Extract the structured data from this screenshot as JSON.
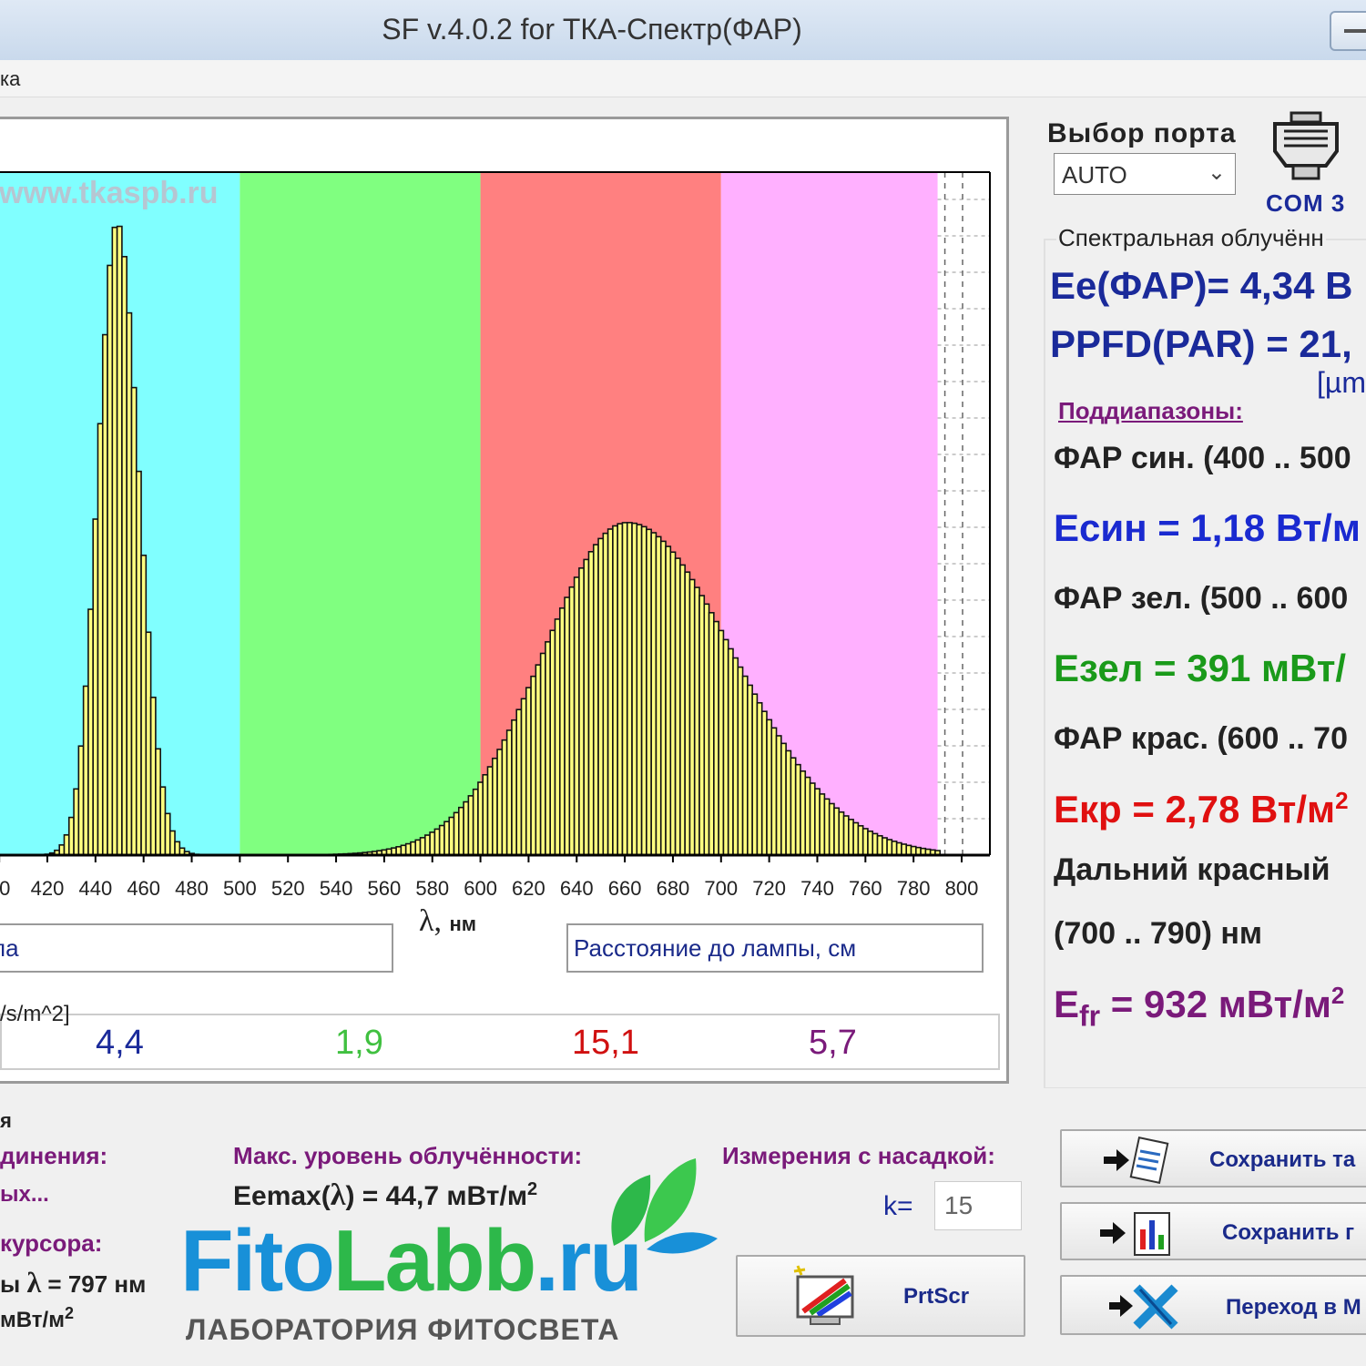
{
  "window": {
    "title": "SF v.4.0.2 for ТКА-Спектр(ФАР)"
  },
  "menu": {
    "item_partial": "ка"
  },
  "chart_data": {
    "type": "bar",
    "watermark": "www.tkaspb.ru",
    "xlabel_symbol": "λ,",
    "xlabel_unit": "нм",
    "xlim": [
      400,
      810
    ],
    "ylim": [
      0,
      48
    ],
    "x_ticks": [
      "00",
      "420",
      "440",
      "460",
      "480",
      "500",
      "520",
      "540",
      "560",
      "580",
      "600",
      "620",
      "640",
      "660",
      "680",
      "700",
      "720",
      "740",
      "760",
      "780",
      "800"
    ],
    "x_tick_values": [
      400,
      420,
      440,
      460,
      480,
      500,
      520,
      540,
      560,
      580,
      600,
      620,
      640,
      660,
      680,
      700,
      720,
      740,
      760,
      780,
      800
    ],
    "bands": [
      {
        "from": 400,
        "to": 500,
        "color": "#80ffff"
      },
      {
        "from": 500,
        "to": 600,
        "color": "#80ff80"
      },
      {
        "from": 600,
        "to": 700,
        "color": "#ff8080"
      },
      {
        "from": 700,
        "to": 790,
        "color": "#ffb0ff"
      }
    ],
    "bar_color": "#ffff80",
    "bar_step_nm": 2,
    "bar_range": [
      402,
      790
    ],
    "peaks": [
      {
        "center": 449,
        "height": 44.7,
        "sigma_left": 8,
        "sigma_right": 9
      },
      {
        "center": 661,
        "height": 23.5,
        "sigma_left": 35,
        "sigma_right": 44
      }
    ]
  },
  "fields": {
    "left_partial": "па",
    "distance": "Расстояние до лампы,  см"
  },
  "values": {
    "units_partial": "/s/m^2]",
    "blue": "4,4",
    "green": "1,9",
    "red": "15,1",
    "farred": "5,7",
    "blue_color": "#1a2a9a",
    "green_color": "#40c040",
    "red_color": "#d01010",
    "farred_color": "#7a1a7a"
  },
  "port": {
    "label": "Выбор порта",
    "selected": "AUTO",
    "com": "COM  3"
  },
  "spectral": {
    "title": "Спектральная облучённ",
    "ee_par": "Ee(ФАР)= 4,34 В",
    "ppfd": "PPFD(PAR) = 21,",
    "ppfd_unit": "[µm",
    "subranges": "Поддиапазоны:",
    "blue_range": "ФАР син. (400 .. 500",
    "e_blue": "Eсин = 1,18 Вт/м",
    "green_range": "ФАР зел. (500 .. 600",
    "e_green": "Eзел = 391 мВт/",
    "red_range": "ФАР крас. (600 .. 70",
    "e_red": "Eкр = 2,78 Вт/м",
    "e_red_sup": "2",
    "farred_label": "Дальний красный",
    "farred_range": "(700 .. 790) нм",
    "e_fr_base": "E",
    "e_fr_sub": "fr",
    "e_fr_value": " = 932 мВт/м",
    "e_fr_sup": "2"
  },
  "bottom": {
    "section_partial": "я",
    "connection_label": "динения:",
    "connection_value": "ых...",
    "max_label": "Макс. уровень облучённости:",
    "emax_prefix": "Eemax(",
    "emax_lambda": "λ",
    "emax_value": ") = 44,7 мВт/м",
    "emax_sup": "2",
    "cursor_label": "курсора:",
    "cursor_prefix": "ы",
    "cursor_lambda": "λ",
    "cursor_value": "= 797 нм",
    "cursor_unit": "мВт/м",
    "cursor_unit_sup": "2",
    "nozzle_label": "Измерения с насадкой:",
    "k_label": "k=",
    "k_value": "15",
    "prtscr": "PrtScr",
    "save_table": "Сохранить та",
    "save_graph": "Сохранить г",
    "goto": "Переход в M"
  },
  "logo": {
    "fito": "Fito",
    "labb": "Labb",
    "ru": ".ru",
    "subtitle": "ЛАБОРАТОРИЯ ФИТОСВЕТА",
    "blue": "#1890d8",
    "green": "#2db84a"
  }
}
